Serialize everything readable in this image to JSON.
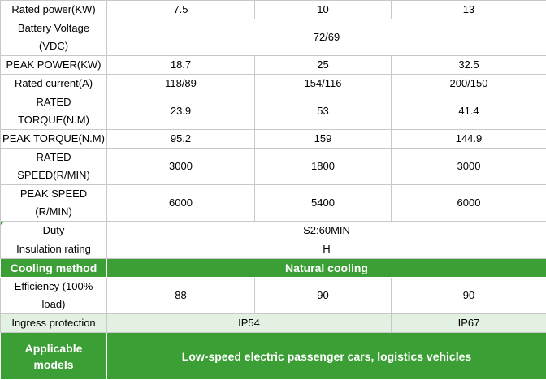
{
  "table": {
    "rated_power": {
      "label": "Rated power(KW)",
      "values": [
        "7.5",
        "10",
        "13"
      ]
    },
    "battery_voltage": {
      "label_line1": "Battery Voltage",
      "label_line2": "(VDC)",
      "value": "72/69"
    },
    "peak_power": {
      "label": "PEAK POWER(KW)",
      "values": [
        "18.7",
        "25",
        "32.5"
      ]
    },
    "rated_current": {
      "label": "Rated current(A)",
      "values": [
        "118/89",
        "154/116",
        "200/150"
      ]
    },
    "rated_torque": {
      "label_line1": "RATED",
      "label_line2": "TORQUE(N.M)",
      "values": [
        "23.9",
        "53",
        "41.4"
      ]
    },
    "peak_torque": {
      "label": "PEAK TORQUE(N.M)",
      "values": [
        "95.2",
        "159",
        "144.9"
      ]
    },
    "rated_speed": {
      "label_line1": "RATED",
      "label_line2": "SPEED(R/MIN)",
      "values": [
        "3000",
        "1800",
        "3000"
      ]
    },
    "peak_speed": {
      "label_line1": "PEAK SPEED",
      "label_line2": "(R/MIN)",
      "values": [
        "6000",
        "5400",
        "6000"
      ]
    },
    "duty": {
      "label": "Duty",
      "value": "S2:60MIN"
    },
    "insulation": {
      "label": "Insulation rating",
      "value": "H"
    },
    "cooling": {
      "label": "Cooling method",
      "value": "Natural cooling"
    },
    "efficiency": {
      "label_line1": "Efficiency (100%",
      "label_line2": "load)",
      "values": [
        "88",
        "90",
        "90"
      ]
    },
    "ingress": {
      "label": "Ingress protection",
      "values": [
        "IP54",
        "IP67"
      ]
    },
    "applicable": {
      "label_line1": "Applicable",
      "label_line2": "models",
      "value": "Low-speed electric passenger cars, logistics vehicles"
    }
  },
  "colors": {
    "header_green": "#3b9f35",
    "pale_green": "#e3f1e2",
    "border": "#c8c8c8"
  }
}
